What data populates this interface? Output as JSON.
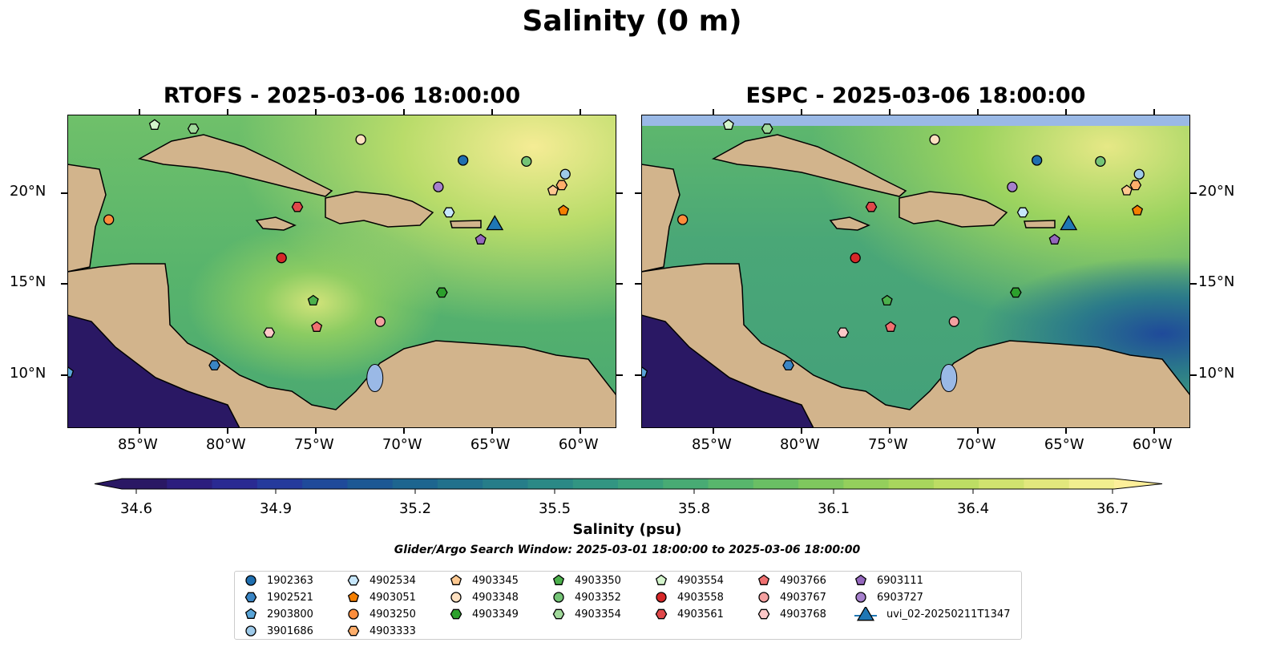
{
  "figure": {
    "title": "Salinity (0 m)"
  },
  "panels": [
    {
      "title": "RTOFS - 2025-03-06 18:00:00"
    },
    {
      "title": "ESPC - 2025-03-06 18:00:00"
    }
  ],
  "axes": {
    "lon_ticks": [
      "85°W",
      "80°W",
      "75°W",
      "70°W",
      "65°W",
      "60°W"
    ],
    "lat_ticks": [
      "20°N",
      "15°N",
      "10°N"
    ]
  },
  "colorbar": {
    "label": "Salinity (psu)",
    "ticks": [
      "34.6",
      "34.9",
      "35.2",
      "35.5",
      "35.8",
      "36.1",
      "36.4",
      "36.7"
    ],
    "colors": [
      "#2a1864",
      "#2c1e7e",
      "#2a2a92",
      "#253a9c",
      "#1f4a9a",
      "#1c5894",
      "#1d658f",
      "#21718c",
      "#267d89",
      "#2b8986",
      "#329582",
      "#3ba07c",
      "#48ab74",
      "#58b66c",
      "#6abf64",
      "#7fc75e",
      "#94cf5c",
      "#a8d65d",
      "#bddd64",
      "#d0e36f",
      "#e2e87d",
      "#f2ee8f"
    ],
    "under_color": "#2a1864",
    "over_color": "#fdef9a"
  },
  "search_window": "Glider/Argo Search Window: 2025-03-01 18:00:00 to 2025-03-06 18:00:00",
  "chart_data": {
    "type": "map",
    "variable": "Salinity (psu)",
    "depth": "0 m",
    "extent": {
      "lon": [
        -89.05,
        -57.9
      ],
      "lat": [
        7.05,
        24.27
      ]
    },
    "markers": [
      {
        "id": "1902363",
        "shape": "circle",
        "color": "#1f6fb0",
        "lon": -66.6,
        "lat": 21.76
      },
      {
        "id": "1902521",
        "shape": "hexagon",
        "color": "#3a85c4",
        "lon": -80.7,
        "lat": 10.5
      },
      {
        "id": "2903800",
        "shape": "pentagon",
        "color": "#5aa5d8",
        "lon": -89.0,
        "lat": 10.1
      },
      {
        "id": "3901686",
        "shape": "circle",
        "color": "#9ecae9",
        "lon": -60.8,
        "lat": 21.0
      },
      {
        "id": "4902534",
        "shape": "hexagon",
        "color": "#c6e6fb",
        "lon": -67.4,
        "lat": 18.9
      },
      {
        "id": "4903051",
        "shape": "pentagon",
        "color": "#f57f00",
        "lon": -60.9,
        "lat": 19.0
      },
      {
        "id": "4903250",
        "shape": "circle",
        "color": "#fd8d3c",
        "lon": -86.7,
        "lat": 18.5
      },
      {
        "id": "4903333",
        "shape": "hexagon",
        "color": "#fdae6b",
        "lon": -61.0,
        "lat": 20.4
      },
      {
        "id": "4903345",
        "shape": "pentagon",
        "color": "#fdc890",
        "lon": -61.5,
        "lat": 20.1
      },
      {
        "id": "4903348",
        "shape": "circle",
        "color": "#fde0c0",
        "lon": -72.4,
        "lat": 22.9
      },
      {
        "id": "4903349",
        "shape": "hexagon",
        "color": "#2ca02c",
        "lon": -67.8,
        "lat": 14.5
      },
      {
        "id": "4903350",
        "shape": "pentagon",
        "color": "#4cb04c",
        "lon": -75.1,
        "lat": 14.05
      },
      {
        "id": "4903352",
        "shape": "circle",
        "color": "#74c476",
        "lon": -63.0,
        "lat": 21.7
      },
      {
        "id": "4903354",
        "shape": "hexagon",
        "color": "#a1d99b",
        "lon": -81.9,
        "lat": 23.5
      },
      {
        "id": "4903554",
        "shape": "pentagon",
        "color": "#d4f5cc",
        "lon": -84.1,
        "lat": 23.7
      },
      {
        "id": "4903558",
        "shape": "circle",
        "color": "#d62728",
        "lon": -76.9,
        "lat": 16.4
      },
      {
        "id": "4903561",
        "shape": "hexagon",
        "color": "#e0484a",
        "lon": -76.0,
        "lat": 19.2
      },
      {
        "id": "4903766",
        "shape": "pentagon",
        "color": "#f07070",
        "lon": -74.9,
        "lat": 12.6
      },
      {
        "id": "4903767",
        "shape": "circle",
        "color": "#f4a0a0",
        "lon": -71.3,
        "lat": 12.9
      },
      {
        "id": "4903768",
        "shape": "hexagon",
        "color": "#fcc8c8",
        "lon": -77.6,
        "lat": 12.3
      },
      {
        "id": "6903111",
        "shape": "pentagon",
        "color": "#9467bd",
        "lon": -65.6,
        "lat": 17.4
      },
      {
        "id": "6903727",
        "shape": "circle",
        "color": "#a680cc",
        "lon": -68.0,
        "lat": 20.3
      },
      {
        "id": "uvi_02-20250211T1347",
        "shape": "triangle",
        "color": "#1f77b4",
        "lon": -64.8,
        "lat": 18.2
      }
    ]
  }
}
